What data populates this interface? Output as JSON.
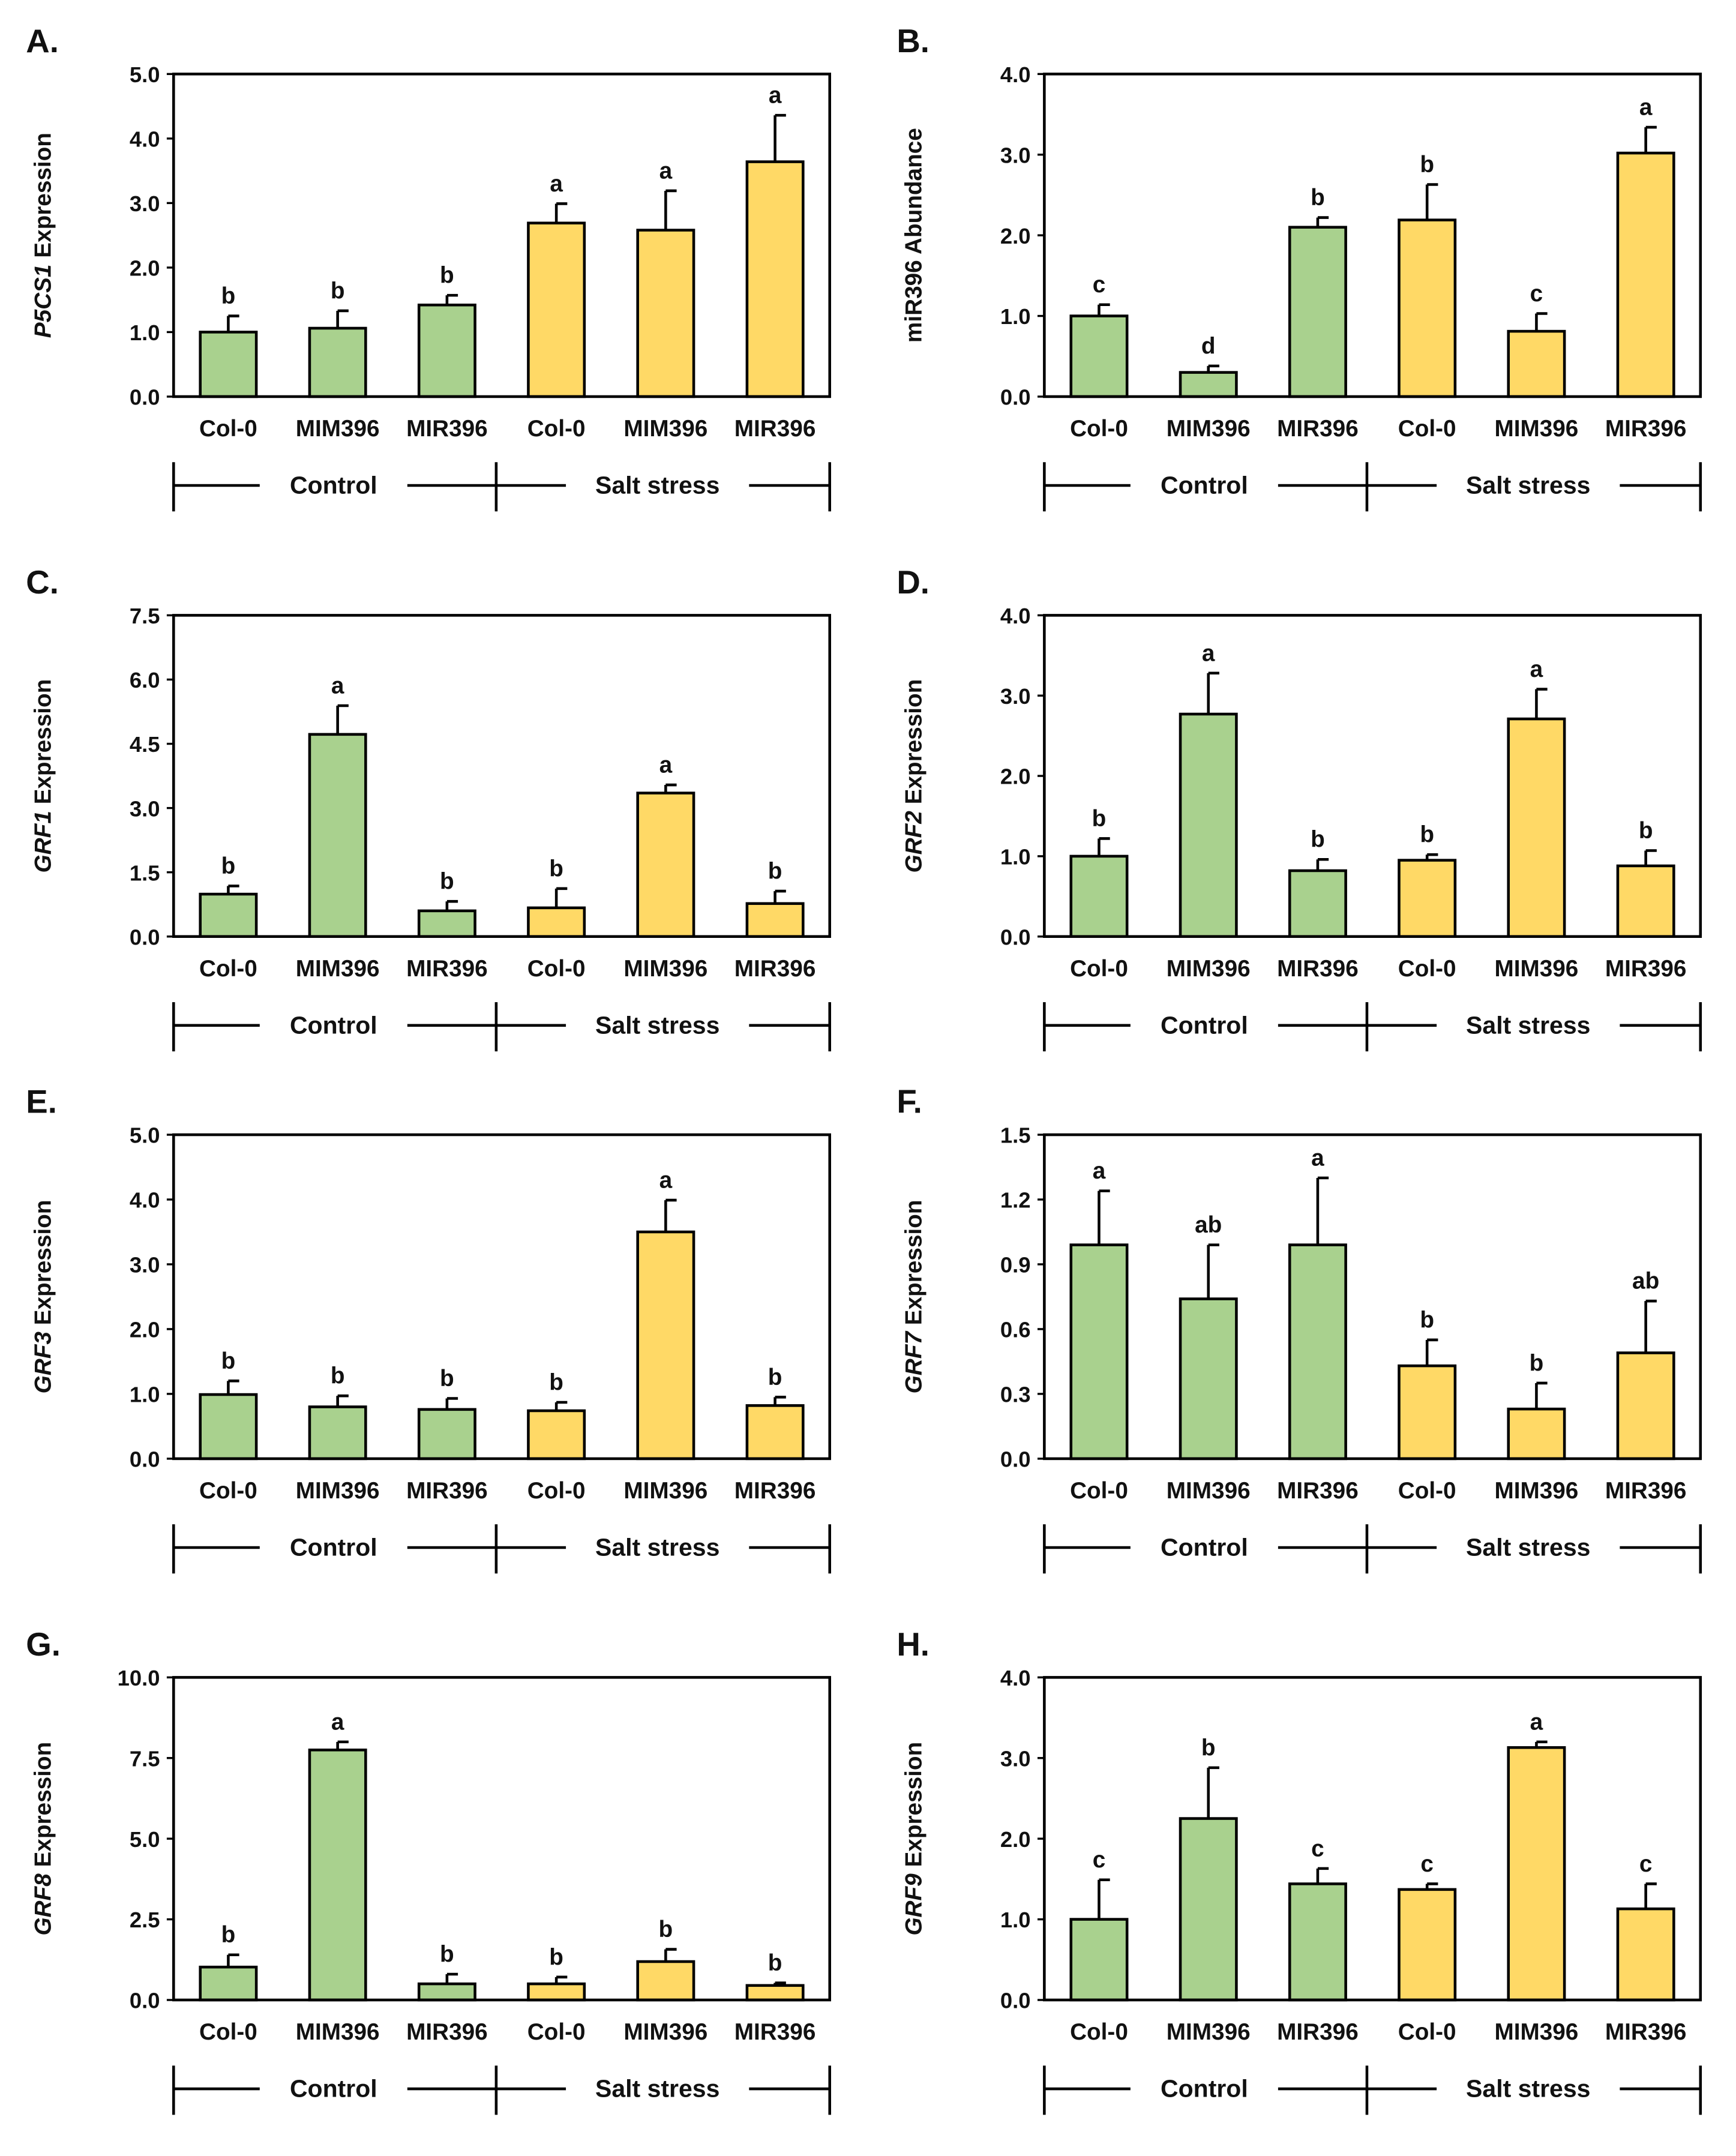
{
  "colors": {
    "control": "#a9d18e",
    "salt": "#ffd966",
    "stroke": "#000000"
  },
  "chart_data": [
    {
      "type": "bar",
      "panel": "A.",
      "ylabel_gene": "P5CS1",
      "ylabel_rest": " Expression",
      "ylim": [
        0,
        5
      ],
      "yticks": [
        "0.0",
        "1.0",
        "2.0",
        "3.0",
        "4.0",
        "5.0"
      ],
      "categories": [
        "Col-0",
        "MIM396",
        "MIR396",
        "Col-0",
        "MIM396",
        "MIR396"
      ],
      "groups": [
        "Control",
        "Salt stress"
      ],
      "values": [
        1.0,
        1.06,
        1.42,
        2.69,
        2.58,
        3.64
      ],
      "errors": [
        0.25,
        0.27,
        0.15,
        0.3,
        0.61,
        0.72
      ],
      "letters": [
        "b",
        "b",
        "b",
        "a",
        "a",
        "a"
      ]
    },
    {
      "type": "bar",
      "panel": "B.",
      "ylabel_gene": "",
      "ylabel_rest": "miR396 Abundance",
      "ylim": [
        0,
        4
      ],
      "yticks": [
        "0.0",
        "1.0",
        "2.0",
        "3.0",
        "4.0"
      ],
      "categories": [
        "Col-0",
        "MIM396",
        "MIR396",
        "Col-0",
        "MIM396",
        "MIR396"
      ],
      "groups": [
        "Control",
        "Salt stress"
      ],
      "values": [
        1.0,
        0.3,
        2.1,
        2.19,
        0.81,
        3.02
      ],
      "errors": [
        0.14,
        0.08,
        0.12,
        0.44,
        0.22,
        0.32
      ],
      "letters": [
        "c",
        "d",
        "b",
        "b",
        "c",
        "a"
      ]
    },
    {
      "type": "bar",
      "panel": "C.",
      "ylabel_gene": "GRF1",
      "ylabel_rest": " Expression",
      "ylim": [
        0,
        7.5
      ],
      "yticks": [
        "0.0",
        "1.5",
        "3.0",
        "4.5",
        "6.0",
        "7.5"
      ],
      "categories": [
        "Col-0",
        "MIM396",
        "MIR396",
        "Col-0",
        "MIM396",
        "MIR396"
      ],
      "groups": [
        "Control",
        "Salt stress"
      ],
      "values": [
        0.99,
        4.72,
        0.6,
        0.67,
        3.35,
        0.77
      ],
      "errors": [
        0.19,
        0.67,
        0.22,
        0.45,
        0.19,
        0.29
      ],
      "letters": [
        "b",
        "a",
        "b",
        "b",
        "a",
        "b"
      ]
    },
    {
      "type": "bar",
      "panel": "D.",
      "ylabel_gene": "GRF2",
      "ylabel_rest": " Expression",
      "ylim": [
        0,
        4
      ],
      "yticks": [
        "0.0",
        "1.0",
        "2.0",
        "3.0",
        "4.0"
      ],
      "categories": [
        "Col-0",
        "MIM396",
        "MIR396",
        "Col-0",
        "MIM396",
        "MIR396"
      ],
      "groups": [
        "Control",
        "Salt stress"
      ],
      "values": [
        1.0,
        2.77,
        0.82,
        0.95,
        2.71,
        0.88
      ],
      "errors": [
        0.22,
        0.51,
        0.14,
        0.07,
        0.37,
        0.19
      ],
      "letters": [
        "b",
        "a",
        "b",
        "b",
        "a",
        "b"
      ]
    },
    {
      "type": "bar",
      "panel": "E.",
      "ylabel_gene": "GRF3",
      "ylabel_rest": " Expression",
      "ylim": [
        0,
        5
      ],
      "yticks": [
        "0.0",
        "1.0",
        "2.0",
        "3.0",
        "4.0",
        "5.0"
      ],
      "categories": [
        "Col-0",
        "MIM396",
        "MIR396",
        "Col-0",
        "MIM396",
        "MIR396"
      ],
      "groups": [
        "Control",
        "Salt stress"
      ],
      "values": [
        0.99,
        0.8,
        0.76,
        0.74,
        3.5,
        0.82
      ],
      "errors": [
        0.21,
        0.17,
        0.17,
        0.13,
        0.49,
        0.13
      ],
      "letters": [
        "b",
        "b",
        "b",
        "b",
        "a",
        "b"
      ]
    },
    {
      "type": "bar",
      "panel": "F.",
      "ylabel_gene": "GRF7",
      "ylabel_rest": " Expression",
      "ylim": [
        0,
        1.5
      ],
      "yticks": [
        "0.0",
        "0.3",
        "0.6",
        "0.9",
        "1.2",
        "1.5"
      ],
      "categories": [
        "Col-0",
        "MIM396",
        "MIR396",
        "Col-0",
        "MIM396",
        "MIR396"
      ],
      "groups": [
        "Control",
        "Salt stress"
      ],
      "values": [
        0.99,
        0.74,
        0.99,
        0.43,
        0.23,
        0.49
      ],
      "errors": [
        0.25,
        0.25,
        0.31,
        0.12,
        0.12,
        0.24
      ],
      "letters": [
        "a",
        "ab",
        "a",
        "b",
        "b",
        "ab"
      ]
    },
    {
      "type": "bar",
      "panel": "G.",
      "ylabel_gene": "GRF8",
      "ylabel_rest": " Expression",
      "ylim": [
        0,
        10
      ],
      "yticks": [
        "0.0",
        "2.5",
        "5.0",
        "7.5",
        "10.0"
      ],
      "categories": [
        "Col-0",
        "MIM396",
        "MIR396",
        "Col-0",
        "MIM396",
        "MIR396"
      ],
      "groups": [
        "Control",
        "Salt stress"
      ],
      "values": [
        1.02,
        7.75,
        0.5,
        0.5,
        1.19,
        0.45
      ],
      "errors": [
        0.38,
        0.25,
        0.3,
        0.21,
        0.38,
        0.08
      ],
      "letters": [
        "b",
        "a",
        "b",
        "b",
        "b",
        "b"
      ]
    },
    {
      "type": "bar",
      "panel": "H.",
      "ylabel_gene": "GRF9",
      "ylabel_rest": " Expression",
      "ylim": [
        0,
        4
      ],
      "yticks": [
        "0.0",
        "1.0",
        "2.0",
        "3.0",
        "4.0"
      ],
      "categories": [
        "Col-0",
        "MIM396",
        "MIR396",
        "Col-0",
        "MIM396",
        "MIR396"
      ],
      "groups": [
        "Control",
        "Salt stress"
      ],
      "values": [
        1.0,
        2.25,
        1.44,
        1.37,
        3.13,
        1.13
      ],
      "errors": [
        0.49,
        0.63,
        0.19,
        0.07,
        0.07,
        0.31
      ],
      "letters": [
        "c",
        "b",
        "c",
        "c",
        "a",
        "c"
      ]
    }
  ]
}
